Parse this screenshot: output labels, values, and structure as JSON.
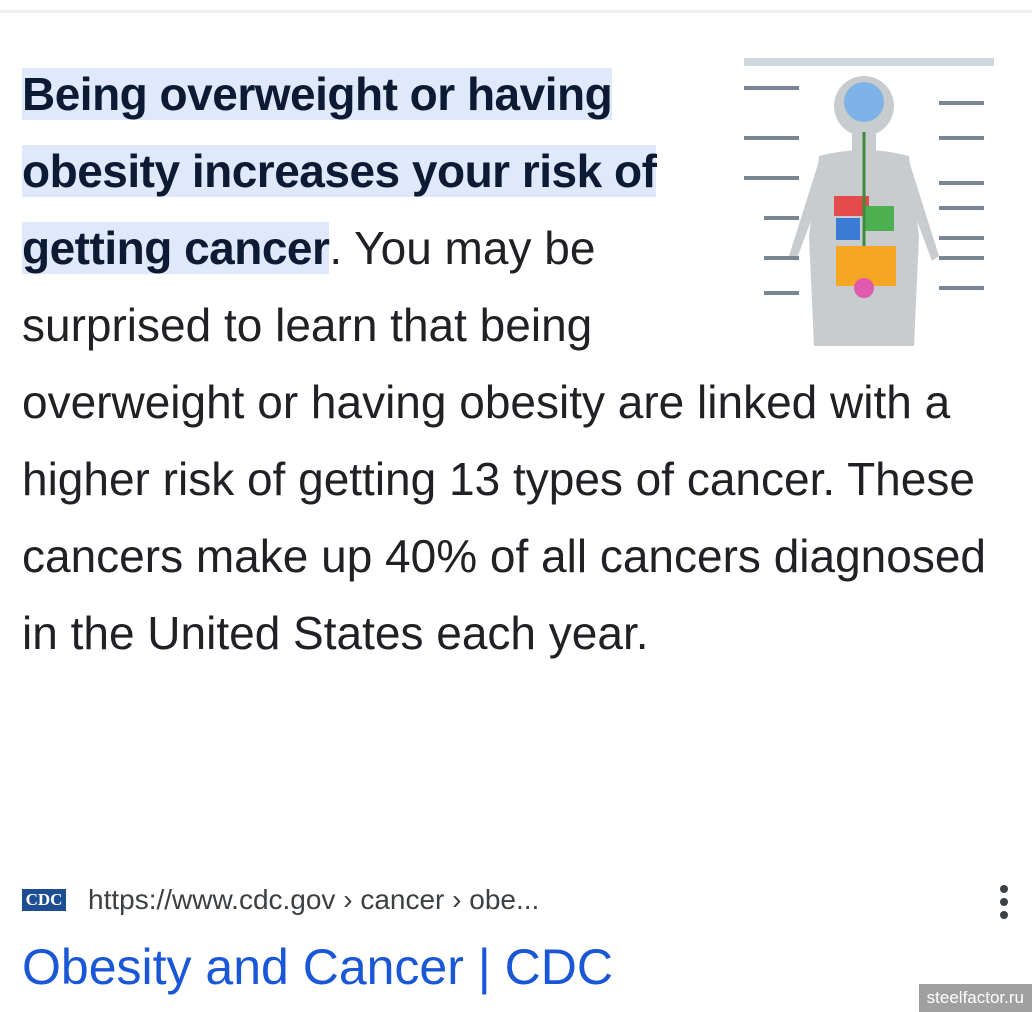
{
  "snippet": {
    "highlight": "Being overweight or having obesity increases your risk of getting cancer",
    "rest": ". You may be surprised to learn that being overweight or having obesity are linked with a higher risk of getting 13 types of cancer. These cancers make up 40% of all cancers diagnosed in the United States each year."
  },
  "result": {
    "favicon": "CDC",
    "url": "https://www.cdc.gov › cancer › obe...",
    "title": "Obesity and Cancer | CDC"
  },
  "watermark": "steelfactor.ru"
}
